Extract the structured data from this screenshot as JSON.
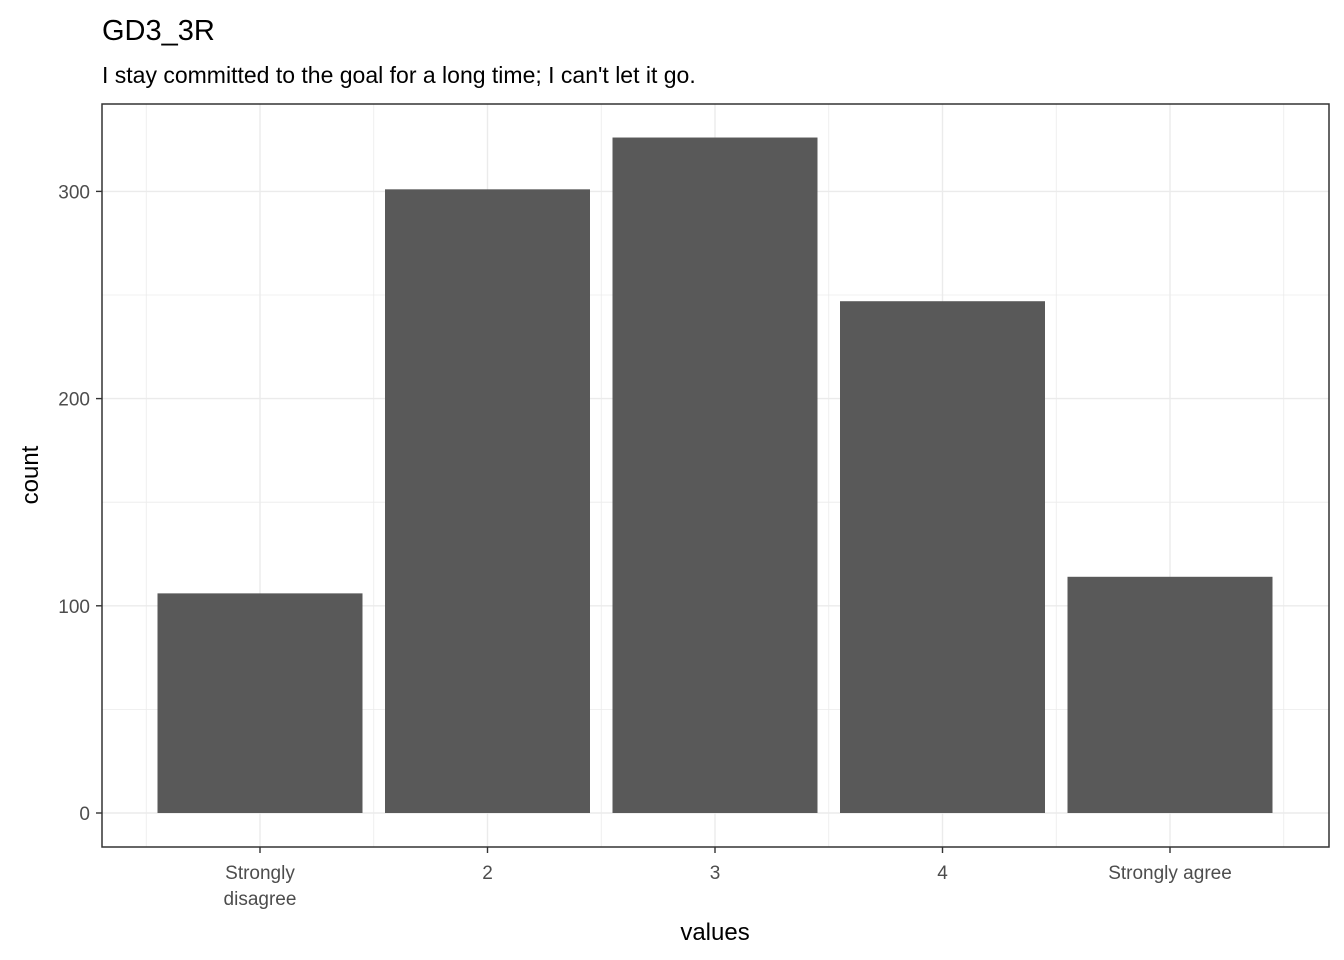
{
  "chart_data": {
    "type": "bar",
    "title": "GD3_3R",
    "subtitle": "I stay committed to the goal for a long time; I can't let it go.",
    "xlabel": "values",
    "ylabel": "count",
    "categories": [
      "Strongly\ndisagree",
      "2",
      "3",
      "4",
      "Strongly agree"
    ],
    "values": [
      106,
      301,
      326,
      247,
      114
    ],
    "ylim": [
      0,
      340
    ],
    "yticks": [
      0,
      100,
      200,
      300
    ],
    "grid": true,
    "legend": "none",
    "bar_color": "#595959",
    "panel_border_color": "#333333",
    "grid_color": "#ebebeb"
  }
}
